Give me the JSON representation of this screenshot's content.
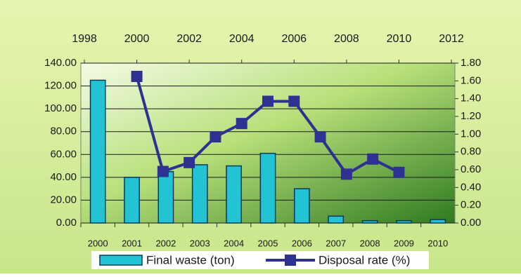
{
  "chart_data": {
    "type": "bar_line",
    "categories": [
      "2000",
      "2001",
      "2002",
      "2003",
      "2004",
      "2005",
      "2006",
      "2007",
      "2008",
      "2009",
      "2010"
    ],
    "series": [
      {
        "name": "Final waste (ton)",
        "color": "#22c4d4",
        "type": "bar",
        "axis": "y",
        "values": [
          125,
          40,
          45,
          51,
          50,
          61,
          30,
          6,
          2,
          2,
          3
        ]
      },
      {
        "name": "Disposal rate (%)",
        "color": "#2e3192",
        "type": "line",
        "axis": "y2",
        "x": [
          2000,
          2001,
          2002,
          2003,
          2004,
          2005,
          2006,
          2007,
          2008,
          2009,
          2010
        ],
        "values": [
          1.65,
          0.58,
          0.68,
          0.97,
          1.12,
          1.37,
          1.37,
          0.97,
          0.55,
          0.72,
          0.57
        ]
      }
    ],
    "ylim": [
      0,
      140
    ],
    "yticks": [
      {
        "value": 0,
        "label": "0.00"
      },
      {
        "value": 20,
        "label": "20.00"
      },
      {
        "value": 40,
        "label": "40.00"
      },
      {
        "value": 60,
        "label": "60.00"
      },
      {
        "value": 80,
        "label": "80.00"
      },
      {
        "value": 100,
        "label": "100.00"
      },
      {
        "value": 120,
        "label": "120.00"
      },
      {
        "value": 140,
        "label": "140.00"
      }
    ],
    "y2lim": [
      0,
      1.8
    ],
    "y2ticks": [
      {
        "value": 0,
        "label": "0.00"
      },
      {
        "value": 0.2,
        "label": "0.20"
      },
      {
        "value": 0.4,
        "label": "0.40"
      },
      {
        "value": 0.6,
        "label": "0.60"
      },
      {
        "value": 0.8,
        "label": "0.80"
      },
      {
        "value": 1,
        "label": "1.00"
      },
      {
        "value": 1.2,
        "label": "1.20"
      },
      {
        "value": 1.4,
        "label": "1.40"
      },
      {
        "value": 1.6,
        "label": "1.60"
      },
      {
        "value": 1.8,
        "label": "1.80"
      }
    ],
    "x2lim": [
      1998,
      2012
    ],
    "x2ticks": [
      1998,
      2000,
      2002,
      2004,
      2006,
      2008,
      2010,
      2012
    ],
    "grid": true
  }
}
